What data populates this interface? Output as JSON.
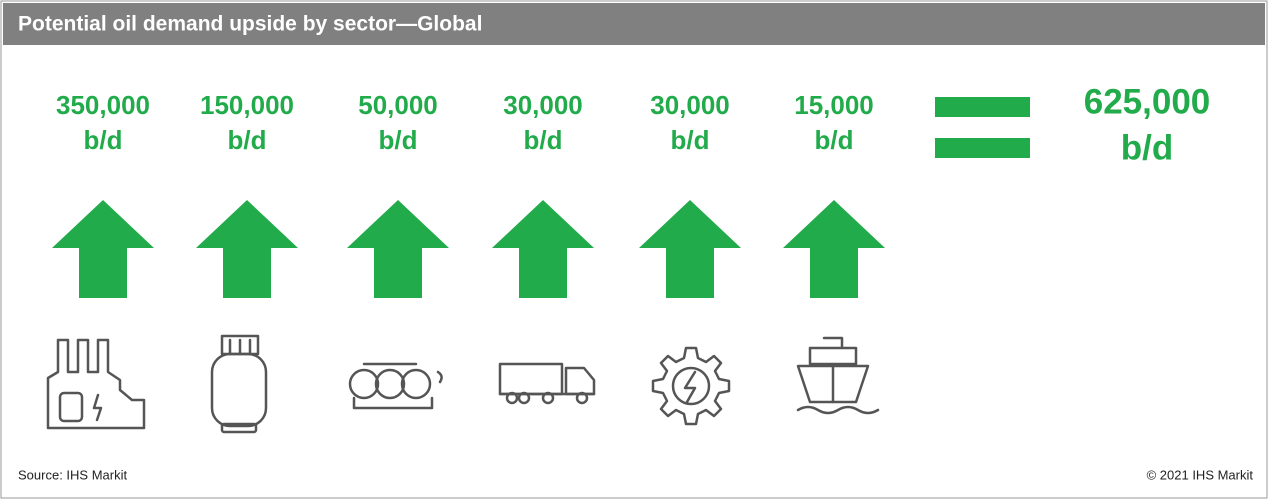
{
  "header": {
    "title": "Potential oil demand upside by sector—Global"
  },
  "sectors": [
    {
      "amount": "350,000",
      "unit": "b/d"
    },
    {
      "amount": "150,000",
      "unit": "b/d"
    },
    {
      "amount": "50,000",
      "unit": "b/d"
    },
    {
      "amount": "30,000",
      "unit": "b/d"
    },
    {
      "amount": "30,000",
      "unit": "b/d"
    },
    {
      "amount": "15,000",
      "unit": "b/d"
    }
  ],
  "total": {
    "amount": "625,000",
    "unit": "b/d"
  },
  "footer": {
    "source": "Source: IHS Markit",
    "copyright": "© 2021 IHS Markit"
  }
}
